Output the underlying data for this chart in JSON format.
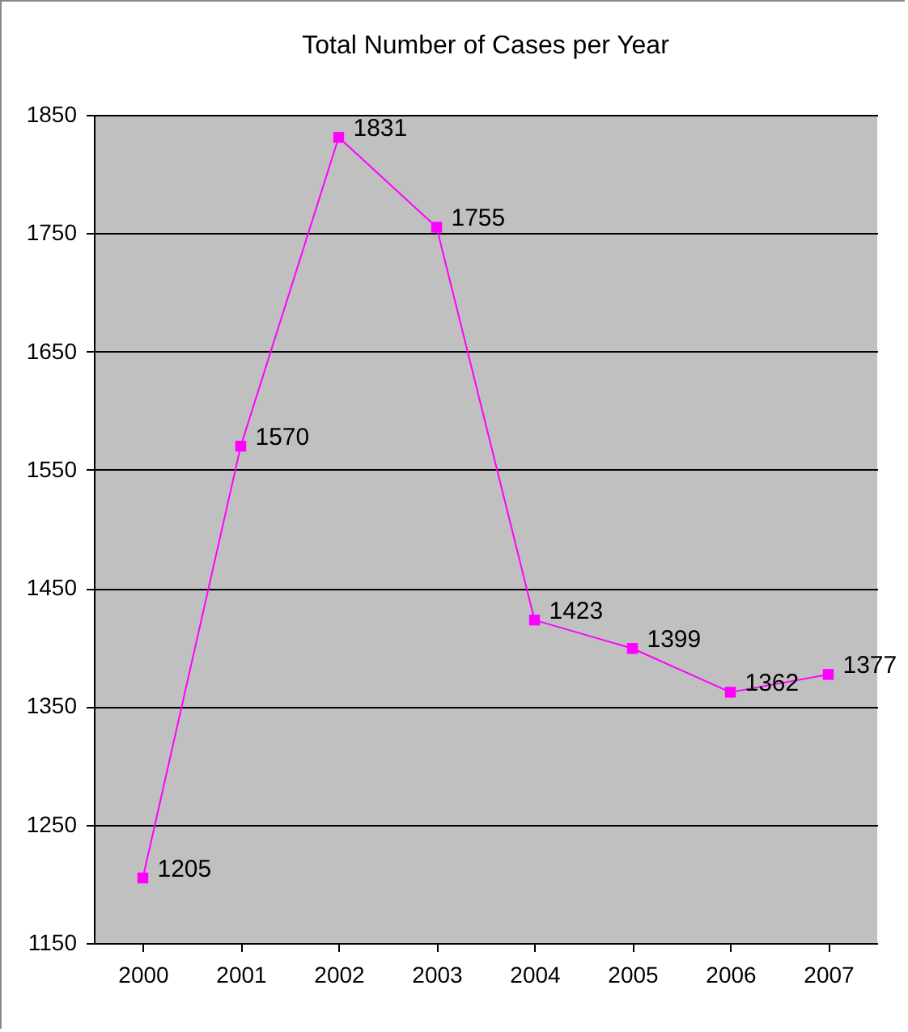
{
  "chart_data": {
    "type": "line",
    "title": "Total Number of Cases per Year",
    "categories": [
      "2000",
      "2001",
      "2002",
      "2003",
      "2004",
      "2005",
      "2006",
      "2007"
    ],
    "series": [
      {
        "color": "#ff00ff",
        "values": [
          1205,
          1570,
          1831,
          1755,
          1423,
          1399,
          1362,
          1377
        ]
      }
    ],
    "ylim": [
      1150,
      1850
    ],
    "yticks": [
      1150,
      1250,
      1350,
      1450,
      1550,
      1650,
      1750,
      1850
    ],
    "grid": "y",
    "marker": "square",
    "line_style": "solid",
    "data_labels": true
  }
}
